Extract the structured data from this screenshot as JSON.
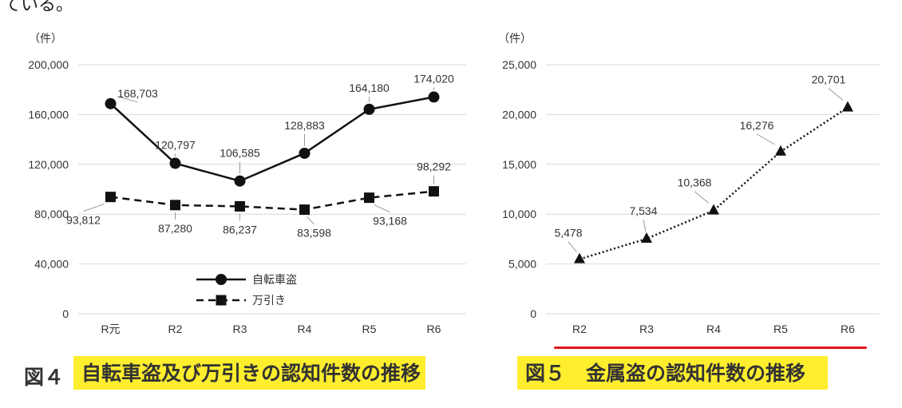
{
  "top_text": "ている。",
  "figures": [
    {
      "number": "図４",
      "caption": "自転車盗及び万引きの認知件数の推移"
    },
    {
      "number": "図５",
      "caption": "金属盗の認知件数の推移"
    }
  ],
  "chart_data": [
    {
      "type": "line",
      "unit_label": "（件）",
      "categories": [
        "R元",
        "R2",
        "R3",
        "R4",
        "R5",
        "R6"
      ],
      "y_ticks": [
        "0",
        "40,000",
        "80,000",
        "120,000",
        "160,000",
        "200,000"
      ],
      "ylim": [
        0,
        200000
      ],
      "grid": true,
      "legend_position": "bottom-center",
      "series": [
        {
          "name": "自転車盗",
          "marker": "circle",
          "line": "solid",
          "values": [
            168703,
            120797,
            106585,
            128883,
            164180,
            174020
          ],
          "labels": [
            "168,703",
            "120,797",
            "106,585",
            "128,883",
            "164,180",
            "174,020"
          ]
        },
        {
          "name": "万引き",
          "marker": "square",
          "line": "dashed",
          "values": [
            93812,
            87280,
            86237,
            83598,
            93168,
            98292
          ],
          "labels": [
            "93,812",
            "87,280",
            "86,237",
            "83,598",
            "93,168",
            "98,292"
          ]
        }
      ]
    },
    {
      "type": "line",
      "unit_label": "（件）",
      "categories": [
        "R2",
        "R3",
        "R4",
        "R5",
        "R6"
      ],
      "y_ticks": [
        "0",
        "5,000",
        "10,000",
        "15,000",
        "20,000",
        "25,000"
      ],
      "ylim": [
        0,
        25000
      ],
      "grid": true,
      "series": [
        {
          "marker": "triangle",
          "line": "dotted",
          "values": [
            5478,
            7534,
            10368,
            16276,
            20701
          ],
          "labels": [
            "5,478",
            "7,534",
            "10,368",
            "16,276",
            "20,701"
          ]
        }
      ]
    }
  ],
  "colors": {
    "highlight": "#ffee2e",
    "underline": "#e0161a",
    "line": "#111111",
    "grid": "#d9d9d9"
  }
}
